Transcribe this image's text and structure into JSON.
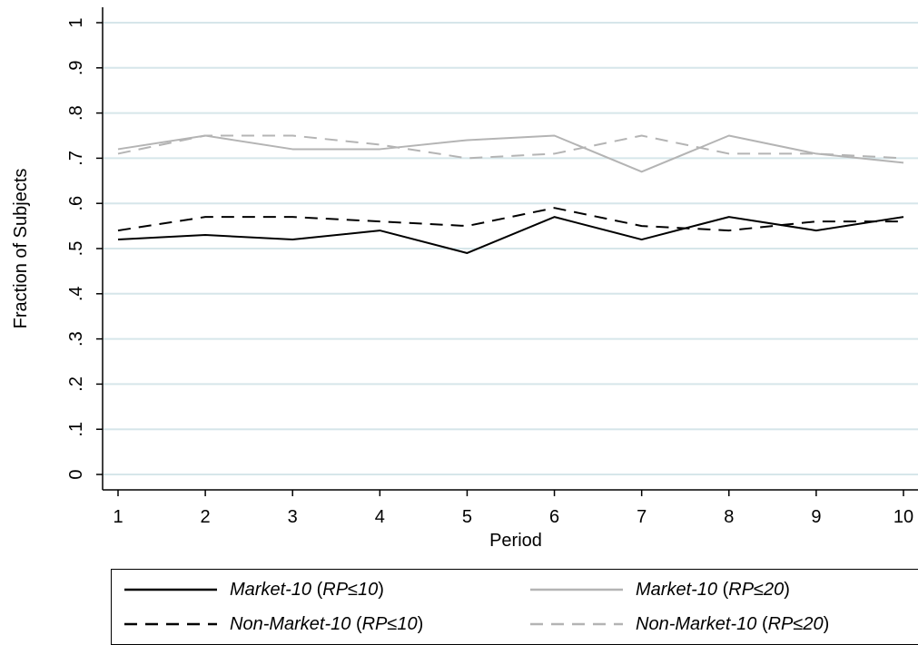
{
  "chart_data": {
    "type": "line",
    "xlabel": "Period",
    "ylabel": "Fraction of Subjects",
    "x": [
      1,
      2,
      3,
      4,
      5,
      6,
      7,
      8,
      9,
      10
    ],
    "xticks": [
      "1",
      "2",
      "3",
      "4",
      "5",
      "6",
      "7",
      "8",
      "9",
      "10"
    ],
    "ylim": [
      0,
      1
    ],
    "yticks": [
      {
        "v": 0,
        "label": "0"
      },
      {
        "v": 0.1,
        "label": ".1"
      },
      {
        "v": 0.2,
        "label": ".2"
      },
      {
        "v": 0.3,
        "label": ".3"
      },
      {
        "v": 0.4,
        "label": ".4"
      },
      {
        "v": 0.5,
        "label": ".5"
      },
      {
        "v": 0.6,
        "label": ".6"
      },
      {
        "v": 0.7,
        "label": ".7"
      },
      {
        "v": 0.8,
        "label": ".8"
      },
      {
        "v": 0.9,
        "label": ".9"
      },
      {
        "v": 1,
        "label": "1"
      }
    ],
    "grid": true,
    "legend_position": "bottom",
    "series": [
      {
        "name": "Market-10 (RP≤10)",
        "name_main": "Market-10",
        "name_qualifier": "RP≤10",
        "color": "#000000",
        "dashed": false,
        "values": [
          0.52,
          0.53,
          0.52,
          0.54,
          0.49,
          0.57,
          0.52,
          0.57,
          0.54,
          0.57
        ]
      },
      {
        "name": "Market-10 (RP≤20)",
        "name_main": "Market-10",
        "name_qualifier": "RP≤20",
        "color": "#b4b4b4",
        "dashed": false,
        "values": [
          0.72,
          0.75,
          0.72,
          0.72,
          0.74,
          0.75,
          0.67,
          0.75,
          0.71,
          0.69
        ]
      },
      {
        "name": "Non-Market-10 (RP≤10)",
        "name_main": "Non-Market-10",
        "name_qualifier": "RP≤10",
        "color": "#000000",
        "dashed": true,
        "values": [
          0.54,
          0.57,
          0.57,
          0.56,
          0.55,
          0.59,
          0.55,
          0.54,
          0.56,
          0.56
        ]
      },
      {
        "name": "Non-Market-10 (RP≤20)",
        "name_main": "Non-Market-10",
        "name_qualifier": "RP≤20",
        "color": "#b4b4b4",
        "dashed": true,
        "values": [
          0.71,
          0.75,
          0.75,
          0.73,
          0.7,
          0.71,
          0.75,
          0.71,
          0.71,
          0.7
        ]
      }
    ],
    "colors": {
      "gridline": "#d6e6ea",
      "axis": "#000000"
    }
  }
}
